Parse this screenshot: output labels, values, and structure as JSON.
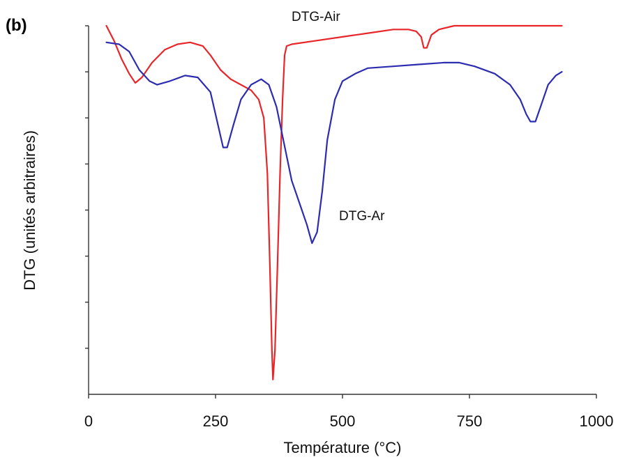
{
  "panel_label": "(b)",
  "colors": {
    "air": "#e8262a",
    "ar": "#2c2cb0",
    "axis": "#333333"
  },
  "chart_data": {
    "type": "line",
    "title": "",
    "xlabel": "Température (°C)",
    "ylabel": "DTG (unités arbitraires)",
    "xlim": [
      0,
      1000
    ],
    "ylim": [
      0,
      1
    ],
    "x_ticks": [
      0,
      250,
      500,
      750,
      1000
    ],
    "x_tick_labels": [
      "0",
      "250",
      "500",
      "750",
      "1000"
    ],
    "y_tick_count": 8,
    "y_tick_labels_shown": false,
    "grid": false,
    "legend": "none",
    "series": [
      {
        "name": "DTG-Air",
        "color": "#e8262a",
        "points": [
          [
            35,
            1.0
          ],
          [
            50,
            0.96
          ],
          [
            65,
            0.91
          ],
          [
            80,
            0.87
          ],
          [
            92,
            0.845
          ],
          [
            105,
            0.86
          ],
          [
            125,
            0.9
          ],
          [
            150,
            0.935
          ],
          [
            175,
            0.95
          ],
          [
            200,
            0.955
          ],
          [
            225,
            0.945
          ],
          [
            240,
            0.92
          ],
          [
            260,
            0.88
          ],
          [
            280,
            0.855
          ],
          [
            300,
            0.84
          ],
          [
            320,
            0.825
          ],
          [
            335,
            0.8
          ],
          [
            345,
            0.75
          ],
          [
            352,
            0.6
          ],
          [
            357,
            0.35
          ],
          [
            361,
            0.12
          ],
          [
            363,
            0.04
          ],
          [
            367,
            0.12
          ],
          [
            372,
            0.35
          ],
          [
            377,
            0.6
          ],
          [
            382,
            0.8
          ],
          [
            386,
            0.92
          ],
          [
            390,
            0.945
          ],
          [
            400,
            0.95
          ],
          [
            450,
            0.96
          ],
          [
            500,
            0.97
          ],
          [
            550,
            0.98
          ],
          [
            600,
            0.99
          ],
          [
            630,
            0.99
          ],
          [
            645,
            0.985
          ],
          [
            655,
            0.97
          ],
          [
            660,
            0.94
          ],
          [
            666,
            0.94
          ],
          [
            675,
            0.975
          ],
          [
            690,
            0.99
          ],
          [
            720,
            1.0
          ],
          [
            800,
            1.0
          ],
          [
            932,
            1.0
          ]
        ]
      },
      {
        "name": "DTG-Ar",
        "color": "#2c2cb0",
        "points": [
          [
            35,
            0.955
          ],
          [
            60,
            0.95
          ],
          [
            80,
            0.93
          ],
          [
            100,
            0.88
          ],
          [
            120,
            0.85
          ],
          [
            135,
            0.84
          ],
          [
            160,
            0.85
          ],
          [
            190,
            0.865
          ],
          [
            215,
            0.86
          ],
          [
            240,
            0.82
          ],
          [
            255,
            0.73
          ],
          [
            265,
            0.67
          ],
          [
            273,
            0.67
          ],
          [
            285,
            0.73
          ],
          [
            300,
            0.8
          ],
          [
            320,
            0.84
          ],
          [
            340,
            0.855
          ],
          [
            355,
            0.84
          ],
          [
            370,
            0.78
          ],
          [
            385,
            0.68
          ],
          [
            400,
            0.58
          ],
          [
            415,
            0.52
          ],
          [
            430,
            0.46
          ],
          [
            440,
            0.41
          ],
          [
            450,
            0.44
          ],
          [
            460,
            0.55
          ],
          [
            470,
            0.69
          ],
          [
            485,
            0.8
          ],
          [
            500,
            0.85
          ],
          [
            525,
            0.87
          ],
          [
            550,
            0.885
          ],
          [
            600,
            0.89
          ],
          [
            650,
            0.895
          ],
          [
            700,
            0.9
          ],
          [
            730,
            0.9
          ],
          [
            760,
            0.89
          ],
          [
            800,
            0.87
          ],
          [
            830,
            0.84
          ],
          [
            850,
            0.8
          ],
          [
            862,
            0.76
          ],
          [
            870,
            0.74
          ],
          [
            880,
            0.74
          ],
          [
            890,
            0.78
          ],
          [
            905,
            0.84
          ],
          [
            920,
            0.865
          ],
          [
            932,
            0.875
          ]
        ]
      }
    ],
    "annotations": [
      {
        "text": "DTG-Air",
        "series": "DTG-Air"
      },
      {
        "text": "DTG-Ar",
        "series": "DTG-Ar"
      }
    ]
  }
}
